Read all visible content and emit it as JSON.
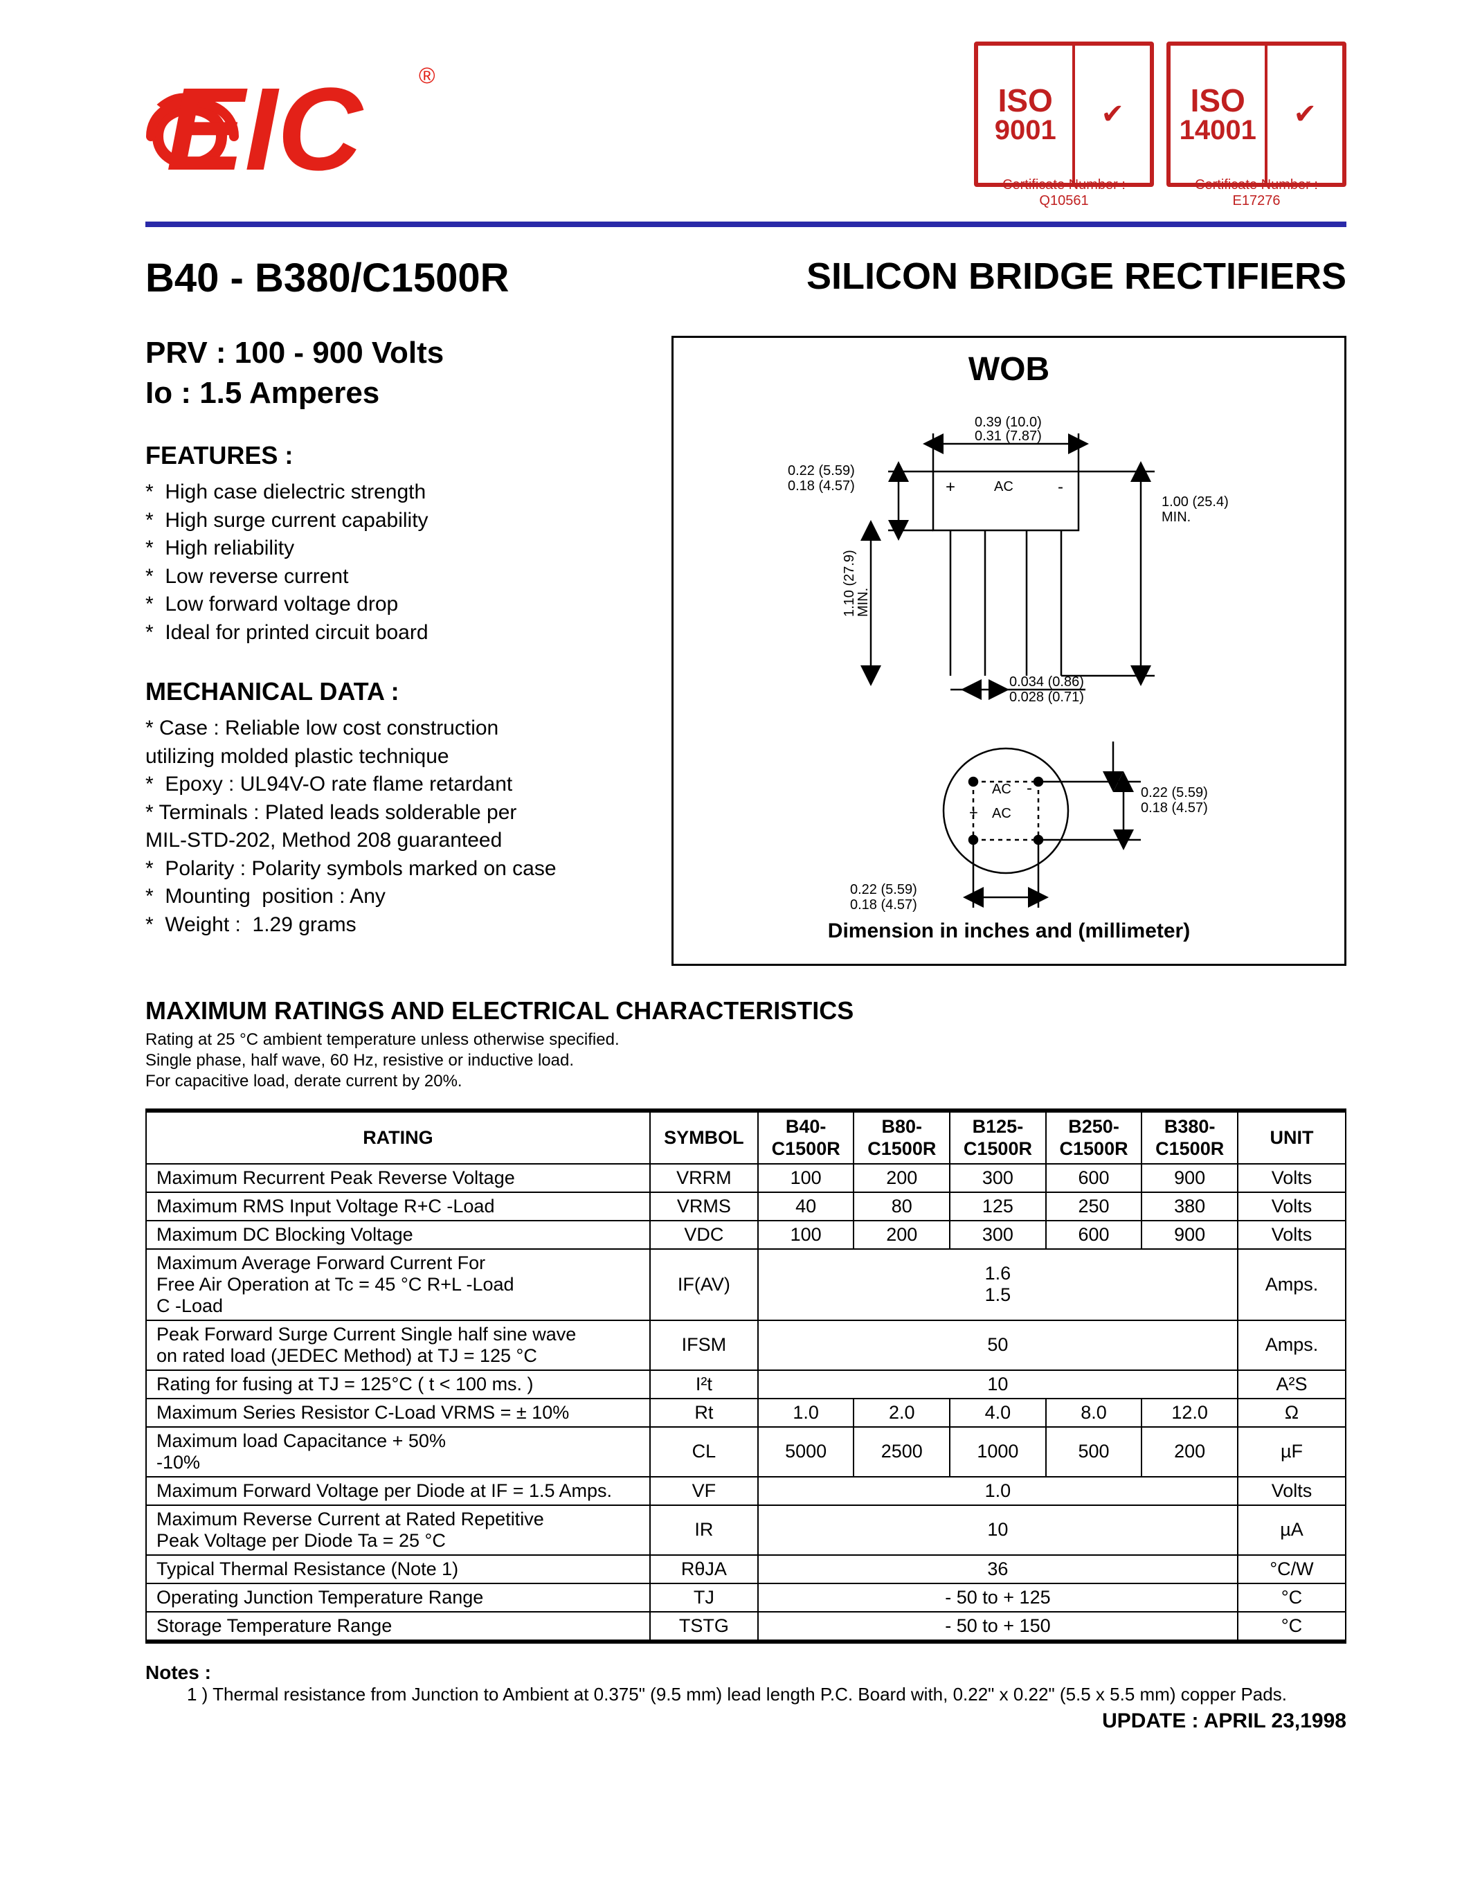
{
  "colors": {
    "logo_red": "#e32118",
    "blue_rule": "#2a2aa8",
    "iso9001_border": "#c02020",
    "iso9001_text": "#c02020",
    "iso14001_border": "#c02020",
    "iso14001_text": "#c02020",
    "text": "#000000",
    "bg": "#ffffff"
  },
  "header": {
    "logo_text": "EIC",
    "logo_reg": "®",
    "iso_badges": [
      {
        "iso": "ISO",
        "num": "9001",
        "check": "✔",
        "caption": "Certificate Number : Q10561"
      },
      {
        "iso": "ISO",
        "num": "14001",
        "check": "✔",
        "caption": "Certificate Number : E17276"
      }
    ]
  },
  "title": {
    "left": "B40 - B380/C1500R",
    "right": "SILICON BRIDGE RECTIFIERS"
  },
  "specs": {
    "prv": "PRV : 100 - 900 Volts",
    "io": "Io : 1.5 Amperes"
  },
  "features": {
    "heading": "FEATURES :",
    "items": [
      "*  High case dielectric strength",
      "*  High surge current capability",
      "*  High reliability",
      "*  Low reverse current",
      "*  Low forward voltage drop",
      "*  Ideal for printed circuit board"
    ]
  },
  "mech": {
    "heading": "MECHANICAL  DATA :",
    "items": [
      "*  Case : Reliable low cost construction\n               utilizing molded plastic technique",
      "*  Epoxy : UL94V-O rate flame retardant",
      "*  Terminals : Plated leads solderable per\n               MIL-STD-202, Method 208 guaranteed",
      "*  Polarity : Polarity symbols marked on case",
      "*  Mounting  position : Any",
      "*  Weight :  1.29 grams"
    ]
  },
  "diagram": {
    "title": "WOB",
    "caption": "Dimension in inches and (millimeter)",
    "dims": {
      "body_w_top1": "0.39 (10.0)",
      "body_w_top2": "0.31 (7.87)",
      "body_h_left1": "0.22 (5.59)",
      "body_h_left2": "0.18 (4.57)",
      "lead_len1": "1.10 (27.9)",
      "lead_len2": "MIN.",
      "lead_dia1": "0.034 (0.86)",
      "lead_dia2": "0.028 (0.71)",
      "overall_h1": "1.00 (25.4)",
      "overall_h2": "MIN.",
      "bot_right1": "0.22 (5.59)",
      "bot_right2": "0.18 (4.57)",
      "bot_left1": "0.22 (5.59)",
      "bot_left2": "0.18 (4.57)",
      "terms": {
        "plus": "+",
        "ac1": "AC",
        "minus": "-",
        "ac2": "AC"
      }
    }
  },
  "ratings_section": {
    "heading": "MAXIMUM  RATINGS  AND  ELECTRICAL  CHARACTERISTICS",
    "sub": "Rating at  25 °C ambient temperature unless otherwise specified.\nSingle phase, half wave, 60 Hz, resistive or inductive load.\nFor capacitive load, derate current by 20%."
  },
  "table": {
    "columns": [
      "RATING",
      "SYMBOL",
      "B40-\nC1500R",
      "B80-\nC1500R",
      "B125-\nC1500R",
      "B250-\nC1500R",
      "B380-\nC1500R",
      "UNIT"
    ],
    "col_widths": [
      "42%",
      "9%",
      "8%",
      "8%",
      "8%",
      "8%",
      "8%",
      "9%"
    ],
    "rows": [
      {
        "name": "Maximum Recurrent Peak Reverse Voltage",
        "sym": "VRRM",
        "vals": [
          "100",
          "200",
          "300",
          "600",
          "900"
        ],
        "unit": "Volts"
      },
      {
        "name": "Maximum RMS Input Voltage R+C -Load",
        "sym": "VRMS",
        "vals": [
          "40",
          "80",
          "125",
          "250",
          "380"
        ],
        "unit": "Volts"
      },
      {
        "name": "Maximum DC Blocking Voltage",
        "sym": "VDC",
        "vals": [
          "100",
          "200",
          "300",
          "600",
          "900"
        ],
        "unit": "Volts"
      },
      {
        "name": "Maximum Average Forward Current For\nFree Air Operation at Tc = 45 °C R+L -Load\n                                              C -Load",
        "sym": "IF(AV)",
        "span": "1.6\n1.5",
        "unit": "Amps."
      },
      {
        "name": "Peak Forward Surge Current Single half sine wave\non rated load (JEDEC Method) at TJ = 125 °C",
        "sym": "IFSM",
        "span": "50",
        "unit": "Amps."
      },
      {
        "name": "Rating for fusing at TJ = 125°C   ( t < 100 ms. )",
        "sym": "I²t",
        "span": "10",
        "unit": "A²S"
      },
      {
        "name": "Maximum Series Resistor C-Load VRMS = ± 10%",
        "sym": "Rt",
        "vals": [
          "1.0",
          "2.0",
          "4.0",
          "8.0",
          "12.0"
        ],
        "unit": "Ω"
      },
      {
        "name": "Maximum load Capacitance      + 50%\n                                             -10%",
        "sym": "CL",
        "vals": [
          "5000",
          "2500",
          "1000",
          "500",
          "200"
        ],
        "unit": "µF"
      },
      {
        "name": "Maximum Forward Voltage per Diode at IF = 1.5 Amps.",
        "sym": "VF",
        "span": "1.0",
        "unit": "Volts"
      },
      {
        "name": "Maximum Reverse Current at Rated Repetitive\nPeak Voltage per Diode          Ta = 25 °C",
        "sym": "IR",
        "span": "10",
        "unit": "µA"
      },
      {
        "name": "Typical Thermal Resistance (Note 1)",
        "sym": "RθJA",
        "span": "36",
        "unit": "°C/W"
      },
      {
        "name": "Operating Junction Temperature Range",
        "sym": "TJ",
        "span": "- 50 to + 125",
        "unit": "°C"
      },
      {
        "name": "Storage Temperature Range",
        "sym": "TSTG",
        "span": "- 50 to + 150",
        "unit": "°C"
      }
    ]
  },
  "notes": {
    "heading": "Notes :",
    "text": "1 )  Thermal resistance from Junction to Ambient at 0.375\" (9.5 mm) lead length P.C. Board with, 0.22\" x 0.22\" (5.5 x 5.5 mm) copper Pads."
  },
  "update": "UPDATE : APRIL 23,1998"
}
